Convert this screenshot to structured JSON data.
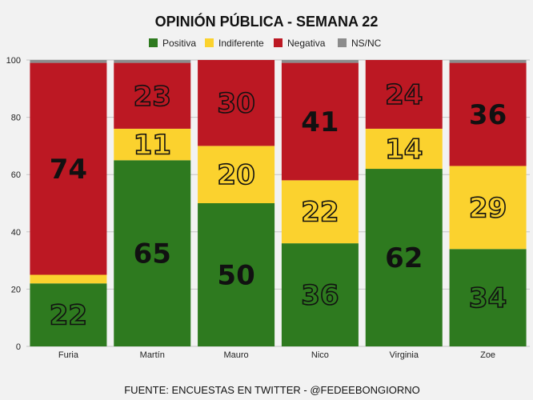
{
  "chart_data": {
    "type": "bar",
    "stacked": true,
    "title": "OPINIÓN PÚBLICA - SEMANA 22",
    "source": "FUENTE: ENCUESTAS EN TWITTER - @FEDEEBONGIORNO",
    "categories": [
      "Furia",
      "Martín",
      "Mauro",
      "Nico",
      "Virginia",
      "Zoe"
    ],
    "ylim": [
      0,
      100
    ],
    "yticks": [
      0,
      20,
      40,
      60,
      80,
      100
    ],
    "grid": true,
    "legend_position": "top",
    "series": [
      {
        "name": "Positiva",
        "color": "#2e7a1f",
        "values": [
          22,
          65,
          50,
          36,
          62,
          34
        ]
      },
      {
        "name": "Indiferente",
        "color": "#fbd22e",
        "values": [
          3,
          11,
          20,
          22,
          14,
          29
        ]
      },
      {
        "name": "Negativa",
        "color": "#bc1823",
        "values": [
          74,
          23,
          30,
          41,
          24,
          36
        ]
      },
      {
        "name": "NS/NC",
        "color": "#8c8c8c",
        "values": [
          1,
          1,
          0,
          1,
          0,
          1
        ]
      }
    ],
    "data_labels": [
      {
        "category": "Furia",
        "series": "Positiva",
        "text": "22",
        "style": "outline"
      },
      {
        "category": "Furia",
        "series": "Negativa",
        "text": "74",
        "style": "solid"
      },
      {
        "category": "Martín",
        "series": "Positiva",
        "text": "65",
        "style": "solid"
      },
      {
        "category": "Martín",
        "series": "Indiferente",
        "text": "11",
        "style": "outline"
      },
      {
        "category": "Martín",
        "series": "Negativa",
        "text": "23",
        "style": "outline"
      },
      {
        "category": "Mauro",
        "series": "Positiva",
        "text": "50",
        "style": "solid"
      },
      {
        "category": "Mauro",
        "series": "Indiferente",
        "text": "20",
        "style": "outline"
      },
      {
        "category": "Mauro",
        "series": "Negativa",
        "text": "30",
        "style": "outline"
      },
      {
        "category": "Nico",
        "series": "Positiva",
        "text": "36",
        "style": "outline"
      },
      {
        "category": "Nico",
        "series": "Indiferente",
        "text": "22",
        "style": "outline"
      },
      {
        "category": "Nico",
        "series": "Negativa",
        "text": "41",
        "style": "solid"
      },
      {
        "category": "Virginia",
        "series": "Positiva",
        "text": "62",
        "style": "solid"
      },
      {
        "category": "Virginia",
        "series": "Indiferente",
        "text": "14",
        "style": "outline"
      },
      {
        "category": "Virginia",
        "series": "Negativa",
        "text": "24",
        "style": "outline"
      },
      {
        "category": "Zoe",
        "series": "Positiva",
        "text": "34",
        "style": "outline"
      },
      {
        "category": "Zoe",
        "series": "Indiferente",
        "text": "29",
        "style": "outline"
      },
      {
        "category": "Zoe",
        "series": "Negativa",
        "text": "36",
        "style": "solid"
      }
    ],
    "colors": {
      "background": "#f2f2f2",
      "grid": "#c4c4c4"
    }
  }
}
